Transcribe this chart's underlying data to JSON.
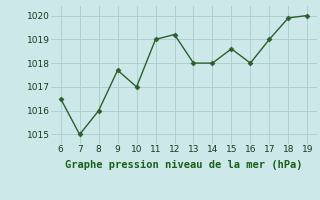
{
  "x": [
    6,
    7,
    8,
    9,
    10,
    11,
    12,
    13,
    14,
    15,
    16,
    17,
    18,
    19
  ],
  "y": [
    1016.5,
    1015.0,
    1016.0,
    1017.7,
    1017.0,
    1019.0,
    1019.2,
    1018.0,
    1018.0,
    1018.6,
    1018.0,
    1019.0,
    1019.9,
    1020.0
  ],
  "line_color": "#2d5f2d",
  "marker": "D",
  "marker_size": 2.5,
  "line_width": 1.0,
  "background_color": "#cce8e8",
  "grid_color": "#aacccc",
  "xlabel": "Graphe pression niveau de la mer (hPa)",
  "xlabel_color": "#1a5f1a",
  "xlabel_fontsize": 7.5,
  "xtick_min": 6,
  "xtick_max": 19,
  "ytick_min": 1015,
  "ytick_max": 1020,
  "ylim": [
    1014.6,
    1020.4
  ],
  "xlim": [
    5.5,
    19.5
  ],
  "tick_fontsize": 6.5,
  "tick_color": "#1a3a1a"
}
